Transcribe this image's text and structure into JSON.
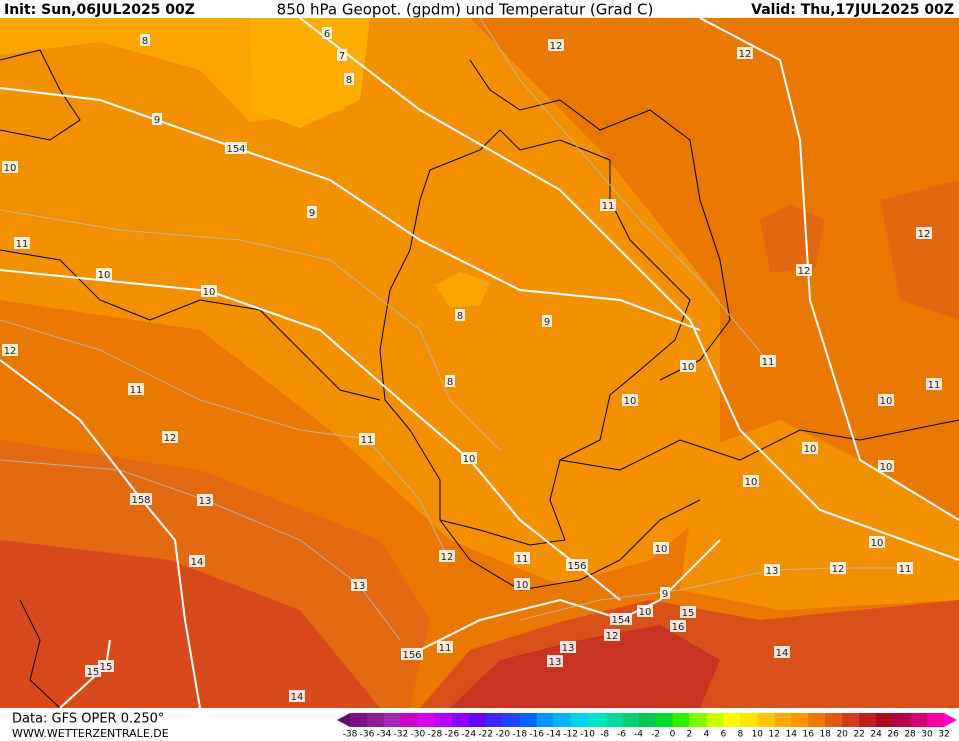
{
  "header": {
    "init": "Init: Sun,06JUL2025 00Z",
    "title": "850 hPa Geopot. (gpdm) und Temperatur (Grad C)",
    "valid": "Valid: Thu,17JUL2025 00Z"
  },
  "footer": {
    "data_source": "Data: GFS OPER 0.250°",
    "website": "WWW.WETTERZENTRALE.DE"
  },
  "colorbar": {
    "labels": [
      -38,
      -36,
      -34,
      -32,
      -30,
      -28,
      -26,
      -24,
      -22,
      -20,
      -18,
      -16,
      -14,
      -12,
      -10,
      -8,
      -6,
      -4,
      -2,
      0,
      2,
      4,
      6,
      8,
      10,
      12,
      14,
      16,
      18,
      20,
      22,
      24,
      26,
      28,
      30,
      32
    ],
    "colors": [
      "#5a0a6e",
      "#78147f",
      "#8c1e96",
      "#a028b4",
      "#c800c8",
      "#dc00f0",
      "#b400ff",
      "#8c00ff",
      "#6400ff",
      "#3c28ff",
      "#1e46ff",
      "#0064ff",
      "#0096ff",
      "#00b4ff",
      "#00d2f0",
      "#00e6c8",
      "#00dca0",
      "#00d278",
      "#00c850",
      "#00dc32",
      "#32f000",
      "#78ff00",
      "#c8ff00",
      "#ffff00",
      "#ffe600",
      "#ffc800",
      "#ffaa00",
      "#ff9600",
      "#f07800",
      "#e05a14",
      "#d23c1e",
      "#c01e1e",
      "#aa0a1e",
      "#b40046",
      "#d20078",
      "#f000a0",
      "#ff00c8"
    ]
  },
  "contour_labels": [
    8,
    6,
    7,
    8,
    9,
    154,
    10,
    9,
    11,
    10,
    10,
    12,
    8,
    9,
    8,
    11,
    12,
    11,
    10,
    158,
    13,
    14,
    13,
    12,
    11,
    10,
    156,
    12,
    12,
    11,
    12,
    12,
    11,
    10,
    10,
    11,
    10,
    10,
    10,
    10,
    10,
    10,
    13,
    12,
    11,
    9,
    10,
    154,
    15,
    16,
    12,
    13,
    13,
    11,
    156,
    14,
    15,
    15,
    14
  ]
}
